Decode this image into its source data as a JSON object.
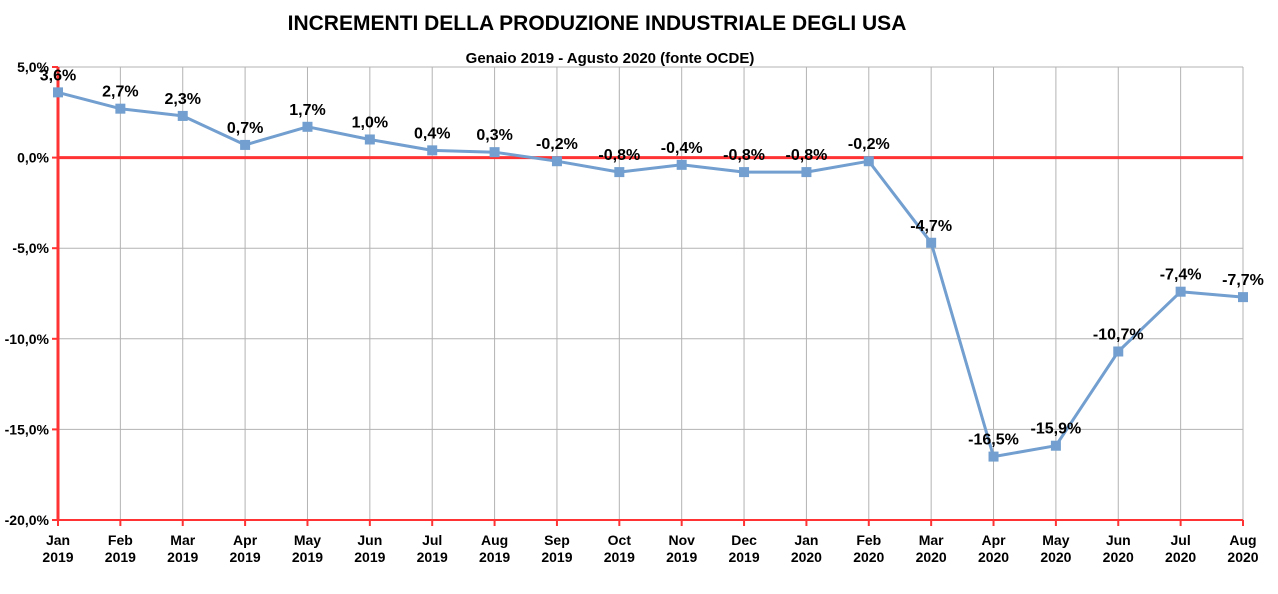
{
  "chart_data": {
    "type": "line",
    "title": "INCREMENTI DELLA PRODUZIONE INDUSTRIALE DEGLI USA",
    "subtitle": "Genaio 2019 - Agusto 2020 (fonte OCDE)",
    "categories": [
      [
        "Jan",
        "2019"
      ],
      [
        "Feb",
        "2019"
      ],
      [
        "Mar",
        "2019"
      ],
      [
        "Apr",
        "2019"
      ],
      [
        "May",
        "2019"
      ],
      [
        "Jun",
        "2019"
      ],
      [
        "Jul",
        "2019"
      ],
      [
        "Aug",
        "2019"
      ],
      [
        "Sep",
        "2019"
      ],
      [
        "Oct",
        "2019"
      ],
      [
        "Nov",
        "2019"
      ],
      [
        "Dec",
        "2019"
      ],
      [
        "Jan",
        "2020"
      ],
      [
        "Feb",
        "2020"
      ],
      [
        "Mar",
        "2020"
      ],
      [
        "Apr",
        "2020"
      ],
      [
        "May",
        "2020"
      ],
      [
        "Jun",
        "2020"
      ],
      [
        "Jul",
        "2020"
      ],
      [
        "Aug",
        "2020"
      ]
    ],
    "values": [
      3.6,
      2.7,
      2.3,
      0.7,
      1.7,
      1.0,
      0.4,
      0.3,
      -0.2,
      -0.8,
      -0.4,
      -0.8,
      -0.8,
      -0.2,
      -4.7,
      -16.5,
      -15.9,
      -10.7,
      -7.4,
      -7.7
    ],
    "value_labels": [
      "3,6%",
      "2,7%",
      "2,3%",
      "0,7%",
      "1,7%",
      "1,0%",
      "0,4%",
      "0,3%",
      "-0,2%",
      "-0,8%",
      "-0,4%",
      "-0,8%",
      "-0,8%",
      "-0,2%",
      "-4,7%",
      "-16,5%",
      "-15,9%",
      "-10,7%",
      "-7,4%",
      "-7,7%"
    ],
    "ylim": [
      -20,
      5
    ],
    "yticks": [
      5,
      0,
      -5,
      -10,
      -15,
      -20
    ],
    "ytick_labels": [
      "5,0%",
      "0,0%",
      "-5,0%",
      "-10,0%",
      "-15,0%",
      "-20,0%"
    ],
    "grid": true,
    "line_color": "#729fcf",
    "axis_color": "#ff3333",
    "grid_color": "#b3b3b3"
  }
}
